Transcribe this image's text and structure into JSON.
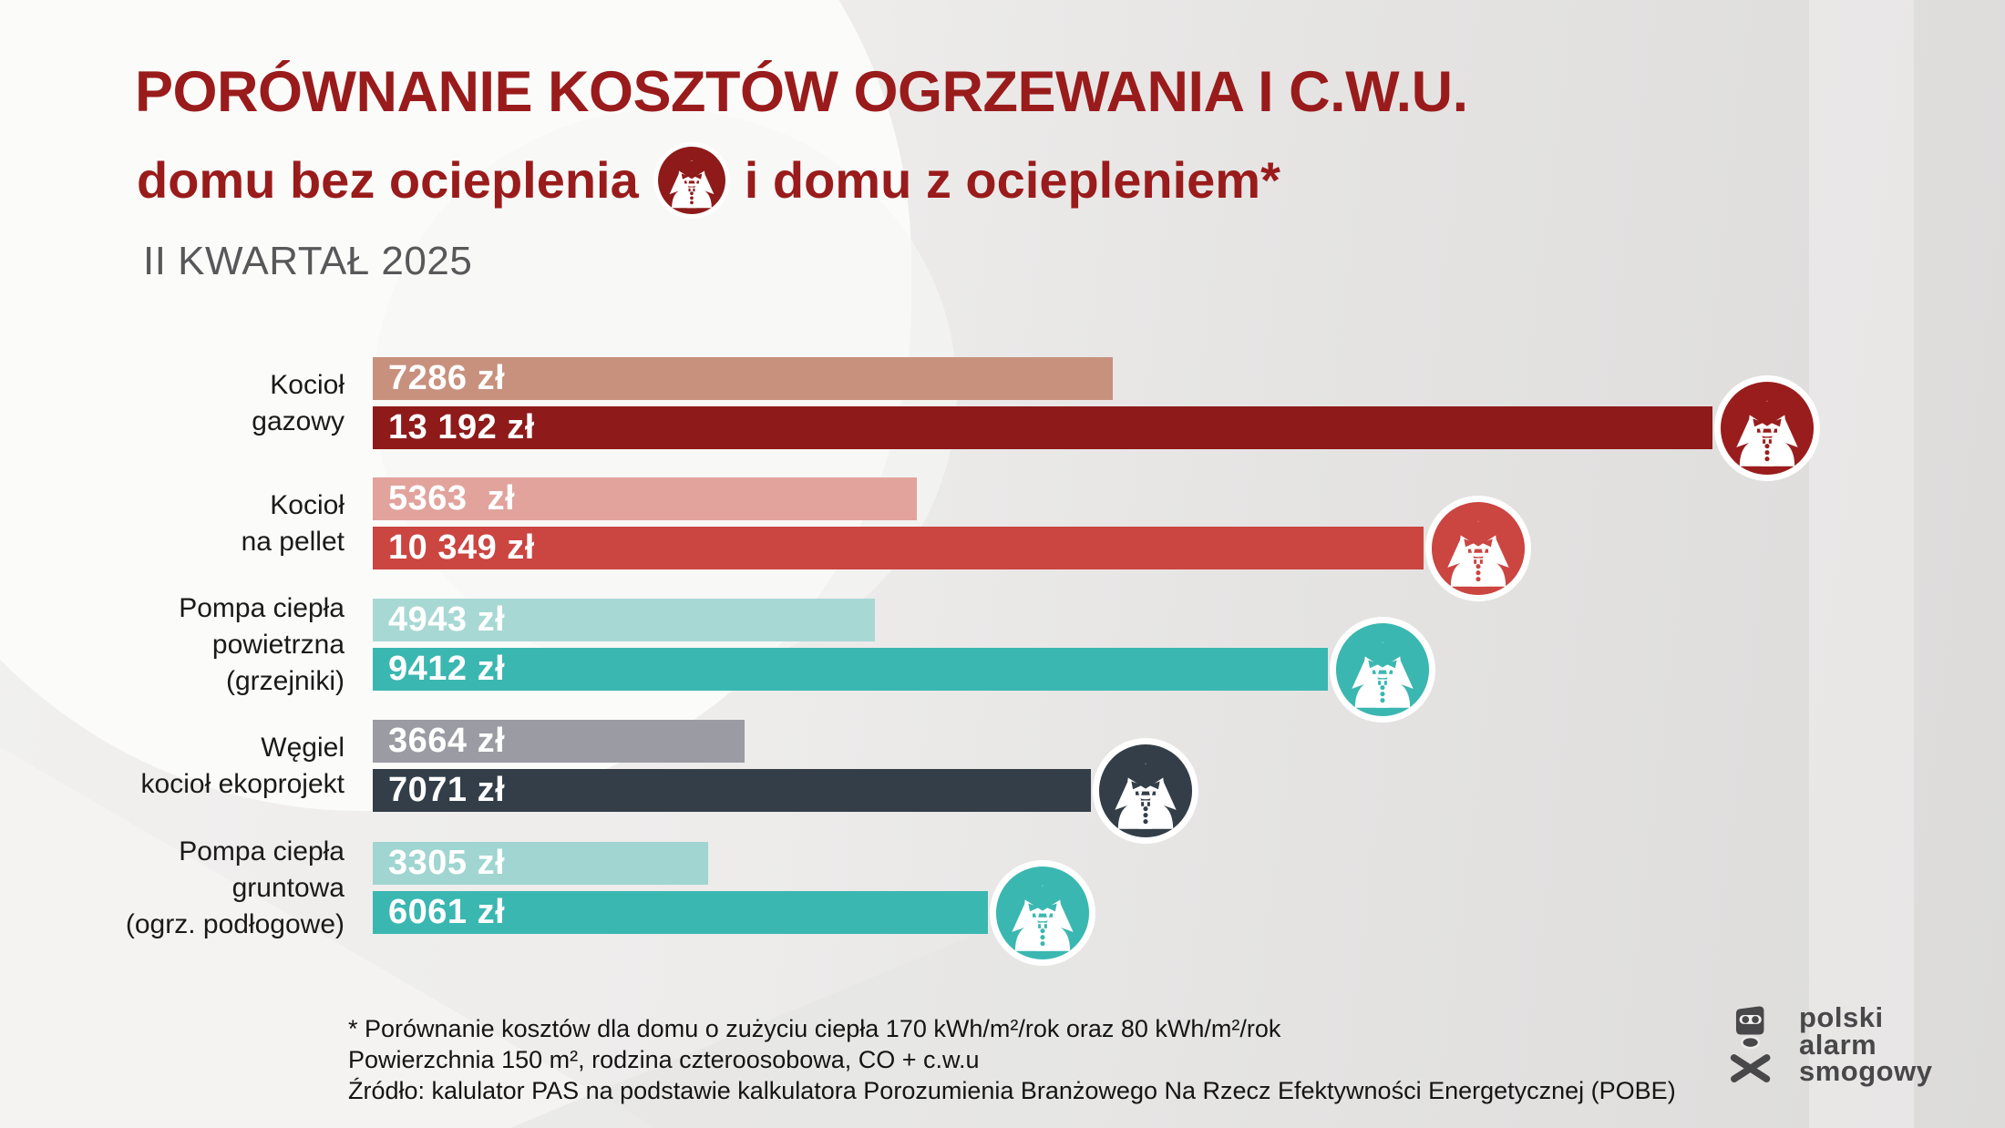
{
  "header": {
    "title": "PORÓWNANIE KOSZTÓW OGRZEWANIA I C.W.U.",
    "subtitle_before": "domu bez ocieplenia",
    "subtitle_after": "i domu z ociepleniem*",
    "period": "II KWARTAŁ 2025",
    "title_color": "#9A1B1B",
    "vampire_badge_color": "#8E1A1A"
  },
  "rows": [
    {
      "label_lines": [
        "Kocioł",
        "gazowy"
      ],
      "light": {
        "text": "7286 zł",
        "value": 7286,
        "color": "#C7917E"
      },
      "dark": {
        "text": "13 192 zł",
        "value": 13192,
        "color": "#8E1A1A"
      },
      "icon_color": "#9A1D1D"
    },
    {
      "label_lines": [
        "Kocioł",
        "na pellet"
      ],
      "light": {
        "text": "5363  zł",
        "value": 5363,
        "color": "#E2A39D"
      },
      "dark": {
        "text": "10 349 zł",
        "value": 10349,
        "color": "#CB4541"
      },
      "icon_color": "#CB4541"
    },
    {
      "label_lines": [
        "Pompa ciepła",
        "powietrzna",
        "(grzejniki)"
      ],
      "light": {
        "text": "4943 zł",
        "value": 4943,
        "color": "#A8D8D4"
      },
      "dark": {
        "text": "9412 zł",
        "value": 9412,
        "color": "#3BB7B1"
      },
      "icon_color": "#3BB7B1"
    },
    {
      "label_lines": [
        "Węgiel",
        "kocioł ekoprojekt"
      ],
      "light": {
        "text": "3664 zł",
        "value": 3664,
        "color": "#9B9BA3"
      },
      "dark": {
        "text": "7071 zł",
        "value": 7071,
        "color": "#333E48"
      },
      "icon_color": "#333E48"
    },
    {
      "label_lines": [
        "Pompa ciepła",
        "gruntowa",
        "(ogrz. podłogowe)"
      ],
      "light": {
        "text": "3305 zł",
        "value": 3305,
        "color": "#A0D5D1"
      },
      "dark": {
        "text": "6061 zł",
        "value": 6061,
        "color": "#3BB7B1"
      },
      "icon_color": "#3BB7B1"
    }
  ],
  "footnote": {
    "lines": [
      "* Porównanie kosztów dla domu o zużyciu ciepła 170 kWh/m²/rok oraz 80 kWh/m²/rok",
      "Powierzchnia 150 m², rodzina czteroosobowa, CO + c.w.u",
      "Źródło: kalulator PAS na podstawie kalkulatora Porozumienia Branżowego Na Rzecz Efektywności Energetycznej (POBE)"
    ]
  },
  "logo": {
    "lines": [
      "polski",
      "alarm",
      "smogowy"
    ],
    "color": "#48484A"
  },
  "chart_data": {
    "type": "bar",
    "orientation": "horizontal",
    "title": "PORÓWNANIE KOSZTÓW OGRZEWANIA I C.W.U. domu bez ocieplenia i domu z ociepleniem*",
    "period": "II KWARTAŁ 2025",
    "unit": "zł",
    "categories": [
      "Kocioł gazowy",
      "Kocioł na pellet",
      "Pompa ciepła powietrzna (grzejniki)",
      "Węgiel kocioł ekoprojekt",
      "Pompa ciepła gruntowa (ogrz. podłogowe)"
    ],
    "series": [
      {
        "name": "dom z ociepleniem",
        "values": [
          7286,
          5363,
          4943,
          3664,
          3305
        ]
      },
      {
        "name": "dom bez ocieplenia",
        "values": [
          13192,
          10349,
          9412,
          7071,
          6061
        ]
      }
    ],
    "value_labels": [
      [
        "7286 zł",
        "13 192 zł"
      ],
      [
        "5363 zł",
        "10 349 zł"
      ],
      [
        "4943 zł",
        "9412 zł"
      ],
      [
        "3664 zł",
        "7071 zł"
      ],
      [
        "3305 zł",
        "6061 zł"
      ]
    ],
    "legend_position": "none",
    "grid": false,
    "xlim": [
      0,
      13192
    ]
  }
}
